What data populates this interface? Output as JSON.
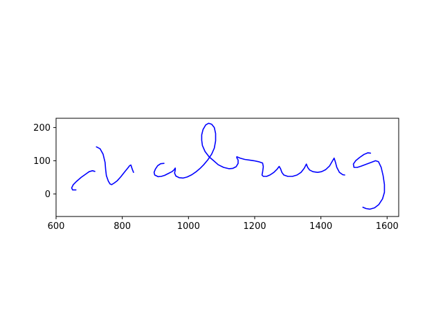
{
  "chart_data": {
    "type": "line",
    "xlim": [
      600,
      1635
    ],
    "ylim": [
      -68,
      228
    ],
    "grid": false,
    "x_ticks": [
      600,
      800,
      1000,
      1200,
      1400,
      1600
    ],
    "y_ticks": [
      0,
      100,
      200
    ],
    "aspect": "equal",
    "series": [
      {
        "color": "#0000ff",
        "strokes": [
          [
            [
              660,
              12
            ],
            [
              650,
              12
            ],
            [
              647,
              18
            ],
            [
              652,
              28
            ],
            [
              662,
              38
            ],
            [
              676,
              50
            ],
            [
              690,
              60
            ],
            [
              700,
              67
            ],
            [
              710,
              70
            ],
            [
              717,
              68
            ]
          ],
          [
            [
              722,
              142
            ],
            [
              733,
              136
            ],
            [
              742,
              120
            ],
            [
              748,
              95
            ],
            [
              750,
              72
            ],
            [
              752,
              55
            ],
            [
              758,
              38
            ],
            [
              763,
              30
            ],
            [
              768,
              28
            ],
            [
              776,
              33
            ],
            [
              785,
              40
            ],
            [
              796,
              52
            ],
            [
              806,
              65
            ],
            [
              816,
              77
            ],
            [
              822,
              85
            ],
            [
              826,
              87
            ],
            [
              830,
              75
            ],
            [
              834,
              65
            ]
          ],
          [
            [
              926,
              92
            ],
            [
              916,
              91
            ],
            [
              907,
              85
            ],
            [
              900,
              75
            ],
            [
              896,
              65
            ],
            [
              898,
              57
            ],
            [
              908,
              52
            ],
            [
              918,
              53
            ],
            [
              928,
              56
            ],
            [
              940,
              62
            ],
            [
              950,
              67
            ],
            [
              956,
              72
            ],
            [
              960,
              78
            ],
            [
              960,
              72
            ],
            [
              958,
              63
            ],
            [
              962,
              54
            ],
            [
              972,
              49
            ],
            [
              984,
              48
            ],
            [
              996,
              51
            ],
            [
              1010,
              58
            ],
            [
              1022,
              66
            ],
            [
              1034,
              76
            ],
            [
              1046,
              88
            ],
            [
              1058,
              102
            ],
            [
              1070,
              120
            ],
            [
              1078,
              138
            ],
            [
              1082,
              160
            ],
            [
              1082,
              182
            ],
            [
              1078,
              200
            ],
            [
              1070,
              210
            ],
            [
              1061,
              213
            ],
            [
              1052,
              208
            ],
            [
              1044,
              194
            ],
            [
              1040,
              178
            ],
            [
              1040,
              162
            ],
            [
              1042,
              146
            ],
            [
              1050,
              128
            ],
            [
              1062,
              112
            ],
            [
              1076,
              100
            ],
            [
              1090,
              88
            ],
            [
              1106,
              80
            ],
            [
              1122,
              76
            ],
            [
              1134,
              77
            ],
            [
              1144,
              82
            ],
            [
              1150,
              92
            ],
            [
              1150,
              102
            ],
            [
              1146,
              109
            ],
            [
              1146,
              112
            ],
            [
              1156,
              108
            ],
            [
              1170,
              104
            ],
            [
              1184,
              102
            ],
            [
              1198,
              100
            ],
            [
              1212,
              97
            ],
            [
              1224,
              93
            ],
            [
              1226,
              82
            ],
            [
              1224,
              66
            ],
            [
              1222,
              57
            ],
            [
              1226,
              53
            ],
            [
              1236,
              53
            ],
            [
              1246,
              57
            ],
            [
              1258,
              65
            ],
            [
              1268,
              75
            ],
            [
              1274,
              83
            ],
            [
              1278,
              76
            ],
            [
              1282,
              65
            ],
            [
              1288,
              57
            ],
            [
              1300,
              53
            ],
            [
              1314,
              53
            ],
            [
              1328,
              57
            ],
            [
              1340,
              65
            ],
            [
              1350,
              78
            ],
            [
              1356,
              90
            ],
            [
              1360,
              80
            ],
            [
              1366,
              72
            ],
            [
              1376,
              67
            ],
            [
              1390,
              65
            ],
            [
              1402,
              67
            ],
            [
              1414,
              73
            ],
            [
              1426,
              84
            ],
            [
              1434,
              98
            ],
            [
              1440,
              108
            ],
            [
              1444,
              95
            ],
            [
              1448,
              80
            ],
            [
              1456,
              65
            ],
            [
              1466,
              58
            ],
            [
              1472,
              57
            ]
          ],
          [
            [
              1550,
              123
            ],
            [
              1542,
              124
            ],
            [
              1530,
              119
            ],
            [
              1517,
              110
            ],
            [
              1505,
              100
            ],
            [
              1498,
              90
            ],
            [
              1500,
              80
            ],
            [
              1510,
              80
            ],
            [
              1522,
              84
            ],
            [
              1538,
              90
            ],
            [
              1552,
              95
            ],
            [
              1565,
              100
            ],
            [
              1574,
              97
            ],
            [
              1582,
              80
            ],
            [
              1588,
              55
            ],
            [
              1592,
              28
            ],
            [
              1592,
              5
            ],
            [
              1586,
              -15
            ],
            [
              1575,
              -32
            ],
            [
              1562,
              -42
            ],
            [
              1548,
              -46
            ],
            [
              1536,
              -44
            ],
            [
              1527,
              -40
            ]
          ]
        ]
      }
    ]
  }
}
